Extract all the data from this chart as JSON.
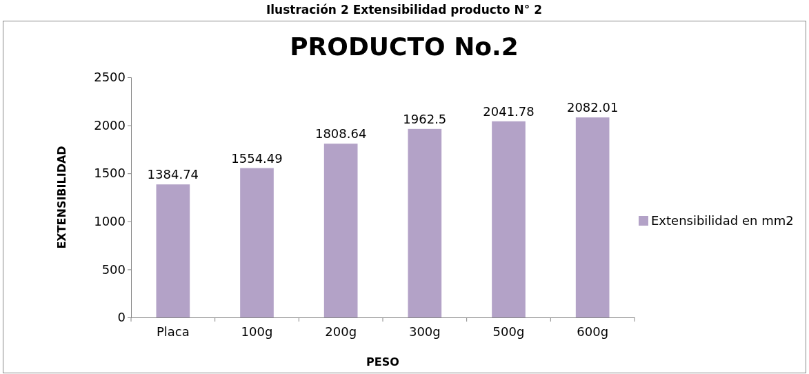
{
  "chart_data": {
    "type": "bar",
    "title": "PRODUCTO No.2",
    "xlabel": "PESO",
    "ylabel": "EXTENSIBILIDAD",
    "annotations": [
      "Ilustración 2 Extensibilidad producto N° 2"
    ],
    "categories": [
      "Placa",
      "100g",
      "200g",
      "300g",
      "500g",
      "600g"
    ],
    "series": [
      {
        "name": "Extensibilidad en mm2",
        "color": "#b3a2c7",
        "values": [
          1384.74,
          1554.49,
          1808.64,
          1962.5,
          2041.78,
          2082.01
        ]
      }
    ],
    "ylim": [
      0,
      2500
    ],
    "yticks": [
      0,
      500,
      1000,
      1500,
      2000,
      2500
    ],
    "data_labels": true,
    "legend": "right"
  }
}
